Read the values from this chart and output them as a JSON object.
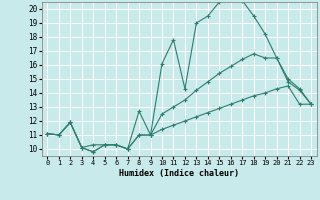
{
  "xlabel": "Humidex (Indice chaleur)",
  "bg_color": "#c8eaea",
  "grid_color": "#ffffff",
  "line_color": "#2e7d6e",
  "xlim": [
    -0.5,
    23.5
  ],
  "ylim": [
    9.5,
    20.5
  ],
  "xticks": [
    0,
    1,
    2,
    3,
    4,
    5,
    6,
    7,
    8,
    9,
    10,
    11,
    12,
    13,
    14,
    15,
    16,
    17,
    18,
    19,
    20,
    21,
    22,
    23
  ],
  "yticks": [
    10,
    11,
    12,
    13,
    14,
    15,
    16,
    17,
    18,
    19,
    20
  ],
  "line1_x": [
    0,
    1,
    2,
    3,
    4,
    5,
    6,
    7,
    8,
    9,
    10,
    11,
    12,
    13,
    14,
    15,
    16,
    17,
    18,
    19,
    20,
    21,
    22,
    23
  ],
  "line1_y": [
    11.1,
    11.0,
    11.9,
    10.1,
    9.8,
    10.3,
    10.3,
    10.0,
    12.7,
    11.0,
    16.1,
    17.8,
    14.3,
    19.0,
    19.5,
    20.5,
    20.8,
    20.6,
    19.5,
    18.2,
    16.5,
    15.0,
    14.3,
    13.2
  ],
  "line2_x": [
    0,
    1,
    2,
    3,
    4,
    5,
    6,
    7,
    8,
    9,
    10,
    11,
    12,
    13,
    14,
    15,
    16,
    17,
    18,
    19,
    20,
    21,
    22,
    23
  ],
  "line2_y": [
    11.1,
    11.0,
    11.9,
    10.1,
    9.8,
    10.3,
    10.3,
    10.0,
    11.0,
    11.0,
    12.5,
    13.0,
    13.5,
    14.2,
    14.8,
    15.4,
    15.9,
    16.4,
    16.8,
    16.5,
    16.5,
    14.8,
    14.2,
    13.2
  ],
  "line3_x": [
    0,
    1,
    2,
    3,
    4,
    5,
    6,
    7,
    8,
    9,
    10,
    11,
    12,
    13,
    14,
    15,
    16,
    17,
    18,
    19,
    20,
    21,
    22,
    23
  ],
  "line3_y": [
    11.1,
    11.0,
    11.9,
    10.1,
    10.3,
    10.3,
    10.3,
    10.0,
    11.0,
    11.0,
    11.4,
    11.7,
    12.0,
    12.3,
    12.6,
    12.9,
    13.2,
    13.5,
    13.8,
    14.0,
    14.3,
    14.5,
    13.2,
    13.2
  ]
}
